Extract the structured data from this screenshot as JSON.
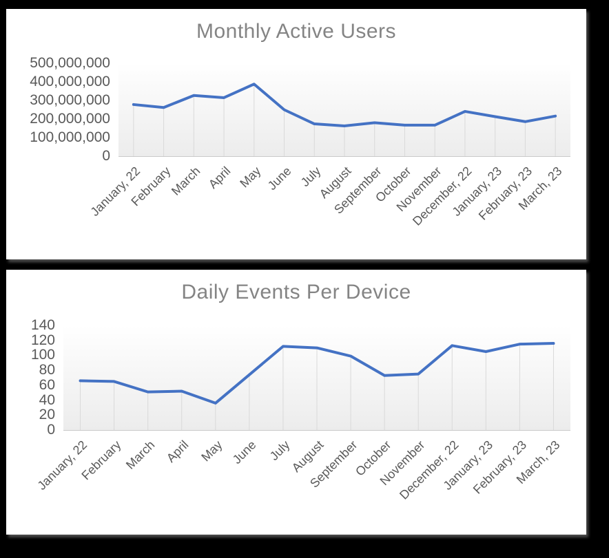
{
  "page": {
    "background_color": "#000000",
    "card_background_color": "#ffffff"
  },
  "colors": {
    "line": "#4472C4",
    "title_text": "#848484",
    "axis_text": "#595959",
    "drop_line": "#d9d9d9",
    "axis_line": "#c9c9c9",
    "plot_gradient_top": "#ffffff",
    "plot_gradient_bottom": "#ececec"
  },
  "chart_data": [
    {
      "type": "line",
      "title": "Monthly Active Users",
      "categories": [
        "January, 22",
        "February",
        "March",
        "April",
        "May",
        "June",
        "July",
        "August",
        "September",
        "October",
        "November",
        "December, 22",
        "January, 23",
        "February, 23",
        "March, 23"
      ],
      "values": [
        278000000,
        262000000,
        327000000,
        315000000,
        388000000,
        250000000,
        174000000,
        163000000,
        180000000,
        167000000,
        167000000,
        241000000,
        213000000,
        186000000,
        216000000
      ],
      "xlabel": "",
      "ylabel": "",
      "ylim": [
        0,
        500000000
      ],
      "ytick_step": 100000000,
      "legend": false,
      "grid": "vertical-drop-lines"
    },
    {
      "type": "line",
      "title": "Daily Events Per Device",
      "categories": [
        "January, 22",
        "February",
        "March",
        "April",
        "May",
        "June",
        "July",
        "August",
        "September",
        "October",
        "November",
        "December, 22",
        "January, 23",
        "February, 23",
        "March, 23"
      ],
      "values": [
        66,
        65,
        51,
        52,
        36,
        74,
        112,
        110,
        99,
        73,
        75,
        113,
        105,
        115,
        116
      ],
      "xlabel": "",
      "ylabel": "",
      "ylim": [
        0,
        140
      ],
      "ytick_step": 20,
      "legend": false,
      "grid": "vertical-drop-lines"
    }
  ]
}
